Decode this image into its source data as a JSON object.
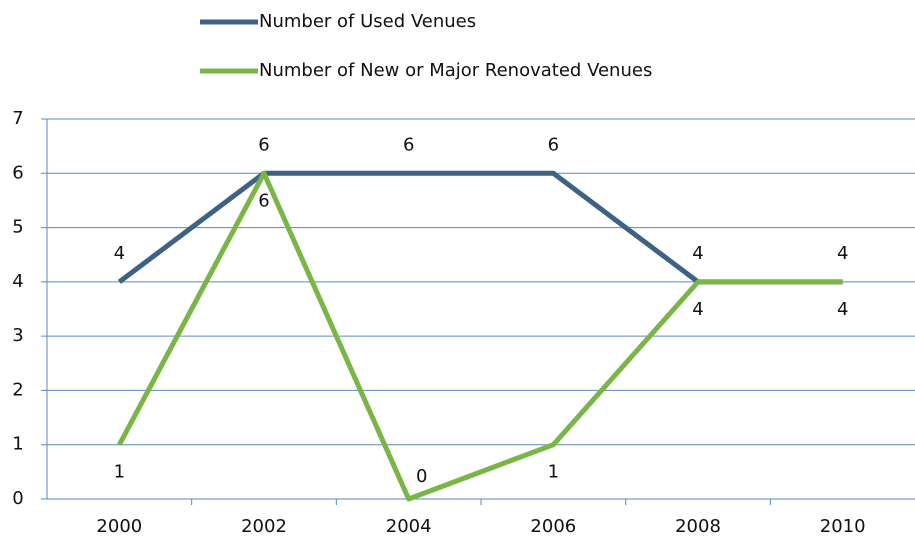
{
  "chart_data": {
    "type": "line",
    "categories": [
      "2000",
      "2002",
      "2004",
      "2006",
      "2008",
      "2010"
    ],
    "series": [
      {
        "name": "Number of Used Venues",
        "color": "#3d6283",
        "values": [
          4,
          6,
          6,
          6,
          4,
          4
        ]
      },
      {
        "name": "Number of New or Major Renovated Venues",
        "color": "#7ab547",
        "values": [
          1,
          6,
          0,
          1,
          4,
          4
        ]
      }
    ],
    "ylim": [
      0,
      7
    ],
    "yticks": [
      0,
      1,
      2,
      3,
      4,
      5,
      6,
      7
    ],
    "grid": true,
    "legend": "top"
  }
}
